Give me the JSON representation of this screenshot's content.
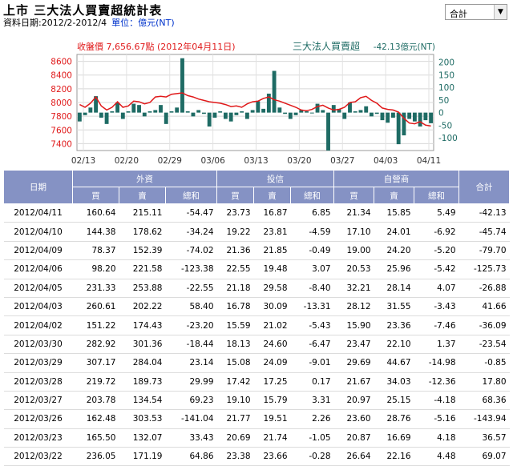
{
  "header": {
    "title": "上市 三大法人買賣超統計表",
    "date_range": "資料日期:2012/2-2012/4",
    "unit": "單位：億元(NT)",
    "select_value": "合計"
  },
  "colors": {
    "bar": "#1e6b64",
    "line": "#e0191a",
    "left_axis": "#e0191a",
    "right_axis": "#1e6b64"
  },
  "chart_data": {
    "type": "bar",
    "title_left": "收盤價 7,656.67點 (2012年04月11日)",
    "title_right": "三大法人買賣超",
    "title_right_value": "-42.13億元(NT)",
    "x_tick_labels": [
      "02/13",
      "02/20",
      "02/29",
      "03/06",
      "03/13",
      "03/20",
      "03/27",
      "04/03",
      "04/11"
    ],
    "y_left_ticks": [
      7400,
      7600,
      7800,
      8000,
      8200,
      8400,
      8600
    ],
    "y_right_ticks": [
      -100,
      -50,
      0,
      50,
      100,
      150,
      200
    ],
    "y_left_range": [
      7300,
      8700
    ],
    "y_right_range": [
      -150,
      230
    ],
    "bars_net_buy": [
      -35,
      -10,
      20,
      65,
      -20,
      -45,
      5,
      40,
      -25,
      5,
      35,
      30,
      -15,
      5,
      10,
      30,
      -45,
      5,
      20,
      215,
      5,
      -15,
      10,
      -5,
      -55,
      -20,
      5,
      -25,
      -35,
      -10,
      5,
      -25,
      10,
      45,
      15,
      75,
      165,
      20,
      -5,
      -25,
      -10,
      10,
      5,
      0,
      35,
      10,
      -150,
      30,
      15,
      -25,
      40,
      5,
      10,
      25,
      -15,
      -5,
      -30,
      -40,
      -20,
      -125,
      -90,
      -25,
      -35,
      -55,
      -30,
      -42
    ],
    "close_price": [
      7970,
      7930,
      7990,
      8080,
      7950,
      7890,
      7930,
      8010,
      7930,
      7950,
      8020,
      8010,
      7980,
      8000,
      8080,
      8090,
      8080,
      8120,
      8130,
      8140,
      8100,
      8080,
      8050,
      8030,
      8010,
      8000,
      7990,
      7970,
      7940,
      7950,
      7930,
      7980,
      8010,
      8020,
      8060,
      8080,
      8040,
      8020,
      7990,
      7960,
      7930,
      7890,
      7880,
      7900,
      7940,
      7960,
      7920,
      7890,
      7900,
      7930,
      8000,
      8010,
      8070,
      8090,
      8030,
      7990,
      7920,
      7900,
      7890,
      7860,
      7770,
      7700,
      7690,
      7720,
      7670,
      7657
    ]
  },
  "table": {
    "group_headers": {
      "date": "日期",
      "foreign": "外資",
      "trust": "投信",
      "dealer": "自營商",
      "total": "合計"
    },
    "sub_headers": [
      "買",
      "賣",
      "總和",
      "買",
      "賣",
      "總和",
      "買",
      "賣",
      "總和"
    ],
    "rows": [
      [
        "2012/04/11",
        "160.64",
        "215.11",
        "-54.47",
        "23.73",
        "16.87",
        "6.85",
        "21.34",
        "15.85",
        "5.49",
        "-42.13"
      ],
      [
        "2012/04/10",
        "144.38",
        "178.62",
        "-34.24",
        "19.22",
        "23.81",
        "-4.59",
        "17.10",
        "24.01",
        "-6.92",
        "-45.74"
      ],
      [
        "2012/04/09",
        "78.37",
        "152.39",
        "-74.02",
        "21.36",
        "21.85",
        "-0.49",
        "19.00",
        "24.20",
        "-5.20",
        "-79.70"
      ],
      [
        "2012/04/06",
        "98.20",
        "221.58",
        "-123.38",
        "22.55",
        "19.48",
        "3.07",
        "20.53",
        "25.96",
        "-5.42",
        "-125.73"
      ],
      [
        "2012/04/05",
        "231.33",
        "253.88",
        "-22.55",
        "21.18",
        "29.58",
        "-8.40",
        "32.21",
        "28.14",
        "4.07",
        "-26.88"
      ],
      [
        "2012/04/03",
        "260.61",
        "202.22",
        "58.40",
        "16.78",
        "30.09",
        "-13.31",
        "28.12",
        "31.55",
        "-3.43",
        "41.66"
      ],
      [
        "2012/04/02",
        "151.22",
        "174.43",
        "-23.20",
        "15.59",
        "21.02",
        "-5.43",
        "15.90",
        "23.36",
        "-7.46",
        "-36.09"
      ],
      [
        "2012/03/30",
        "282.92",
        "301.36",
        "-18.44",
        "18.13",
        "24.60",
        "-6.47",
        "23.47",
        "22.10",
        "1.37",
        "-23.54"
      ],
      [
        "2012/03/29",
        "307.17",
        "284.04",
        "23.14",
        "15.08",
        "24.09",
        "-9.01",
        "29.69",
        "44.67",
        "-14.98",
        "-0.85"
      ],
      [
        "2012/03/28",
        "219.72",
        "189.73",
        "29.99",
        "17.42",
        "17.25",
        "0.17",
        "21.67",
        "34.03",
        "-12.36",
        "17.80"
      ],
      [
        "2012/03/27",
        "203.78",
        "134.54",
        "69.23",
        "19.10",
        "15.79",
        "3.31",
        "20.97",
        "25.15",
        "-4.18",
        "68.36"
      ],
      [
        "2012/03/26",
        "162.48",
        "303.53",
        "-141.04",
        "21.77",
        "19.51",
        "2.26",
        "23.60",
        "28.76",
        "-5.16",
        "-143.94"
      ],
      [
        "2012/03/23",
        "165.50",
        "132.07",
        "33.43",
        "20.69",
        "21.74",
        "-1.05",
        "20.87",
        "16.69",
        "4.18",
        "36.57"
      ],
      [
        "2012/03/22",
        "236.05",
        "171.19",
        "64.86",
        "23.38",
        "23.66",
        "-0.28",
        "26.64",
        "22.16",
        "4.48",
        "69.07"
      ]
    ]
  }
}
